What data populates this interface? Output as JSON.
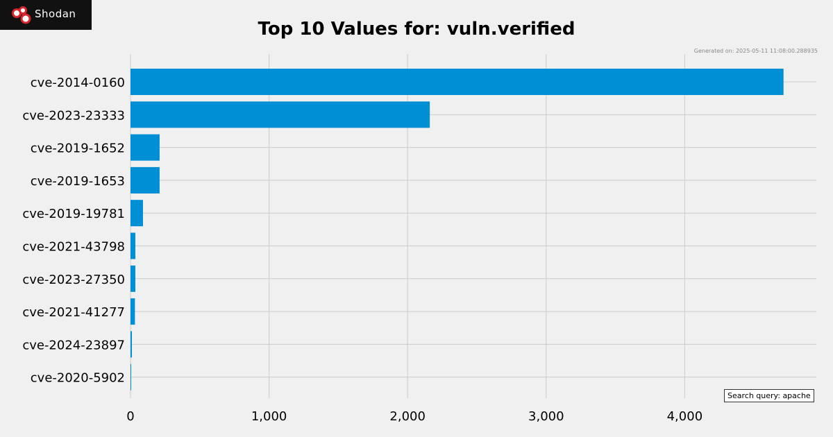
{
  "brand": {
    "logo_text": "Shodan"
  },
  "chart_data": {
    "type": "bar",
    "orientation": "horizontal",
    "title": "Top 10 Values for: vuln.verified",
    "generated": "Generated on: 2025-05-11 11:08:00.288935",
    "query_label": "Search query: apache",
    "categories": [
      "cve-2014-0160",
      "cve-2023-23333",
      "cve-2019-1652",
      "cve-2019-1653",
      "cve-2019-19781",
      "cve-2021-43798",
      "cve-2023-27350",
      "cve-2021-41277",
      "cve-2024-23897",
      "cve-2020-5902"
    ],
    "values": [
      4713,
      2160,
      210,
      210,
      90,
      35,
      35,
      32,
      10,
      3
    ],
    "xlim": [
      0,
      4950
    ],
    "xticks": [
      0,
      1000,
      2000,
      3000,
      4000
    ],
    "xtick_labels": [
      "0",
      "1,000",
      "2,000",
      "3,000",
      "4,000"
    ],
    "grid": true,
    "bar_color": "#008fd5"
  }
}
